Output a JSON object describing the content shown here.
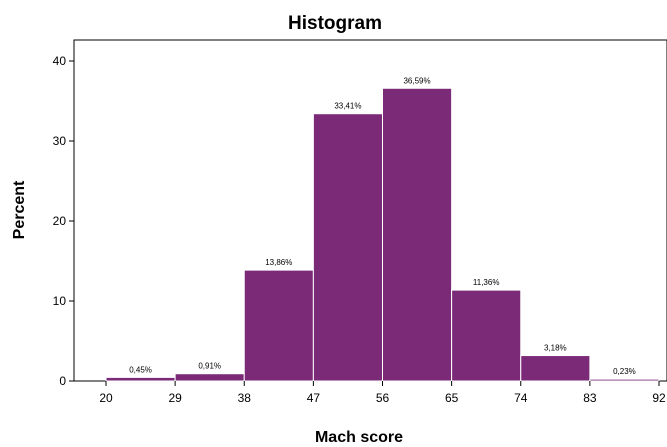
{
  "chart_data": {
    "type": "bar",
    "title": "Histogram",
    "xlabel": "Mach score",
    "ylabel": "Percent",
    "bin_edges": [
      20,
      29,
      38,
      47,
      56,
      65,
      74,
      83,
      92
    ],
    "values": [
      0.45,
      0.91,
      13.86,
      33.41,
      36.59,
      11.36,
      3.18,
      0.23
    ],
    "value_labels": [
      "0,45%",
      "0,91%",
      "13,86%",
      "33,41%",
      "36,59%",
      "11,36%",
      "3,18%",
      "0,23%"
    ],
    "x_ticks": [
      "20",
      "29",
      "38",
      "47",
      "56",
      "65",
      "74",
      "83",
      "92"
    ],
    "y_ticks": [
      0,
      10,
      20,
      30,
      40
    ],
    "ylim": [
      0,
      40
    ],
    "xlim": [
      20,
      92
    ],
    "grid": false,
    "bar_color": "#7b2a78"
  }
}
